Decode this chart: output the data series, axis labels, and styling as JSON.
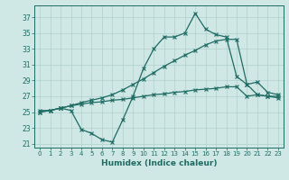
{
  "xlabel": "Humidex (Indice chaleur)",
  "ylabel": "",
  "bg_color": "#cfe8e5",
  "grid_color": "#aed0cc",
  "line_color": "#1e6b63",
  "xlim": [
    -0.5,
    23.5
  ],
  "ylim": [
    20.5,
    38.5
  ],
  "xticks": [
    0,
    1,
    2,
    3,
    4,
    5,
    6,
    7,
    8,
    9,
    10,
    11,
    12,
    13,
    14,
    15,
    16,
    17,
    18,
    19,
    20,
    21,
    22,
    23
  ],
  "yticks": [
    21,
    23,
    25,
    27,
    29,
    31,
    33,
    35,
    37
  ],
  "line1": [
    25.2,
    25.2,
    25.5,
    25.2,
    22.8,
    22.3,
    21.5,
    21.2,
    24.0,
    27.0,
    30.5,
    33.0,
    34.5,
    34.5,
    35.0,
    37.5,
    35.5,
    34.8,
    34.5,
    29.5,
    28.5,
    27.2,
    27.0,
    27.0
  ],
  "line2": [
    25.0,
    25.2,
    25.5,
    25.8,
    26.2,
    26.5,
    26.8,
    27.2,
    27.8,
    28.5,
    29.2,
    30.0,
    30.8,
    31.5,
    32.2,
    32.8,
    33.5,
    34.0,
    34.2,
    34.2,
    28.5,
    28.8,
    27.5,
    27.2
  ],
  "line3": [
    25.0,
    25.2,
    25.5,
    25.8,
    26.0,
    26.2,
    26.3,
    26.5,
    26.6,
    26.8,
    27.0,
    27.2,
    27.3,
    27.5,
    27.6,
    27.8,
    27.9,
    28.0,
    28.2,
    28.2,
    27.0,
    27.2,
    27.0,
    26.8
  ]
}
